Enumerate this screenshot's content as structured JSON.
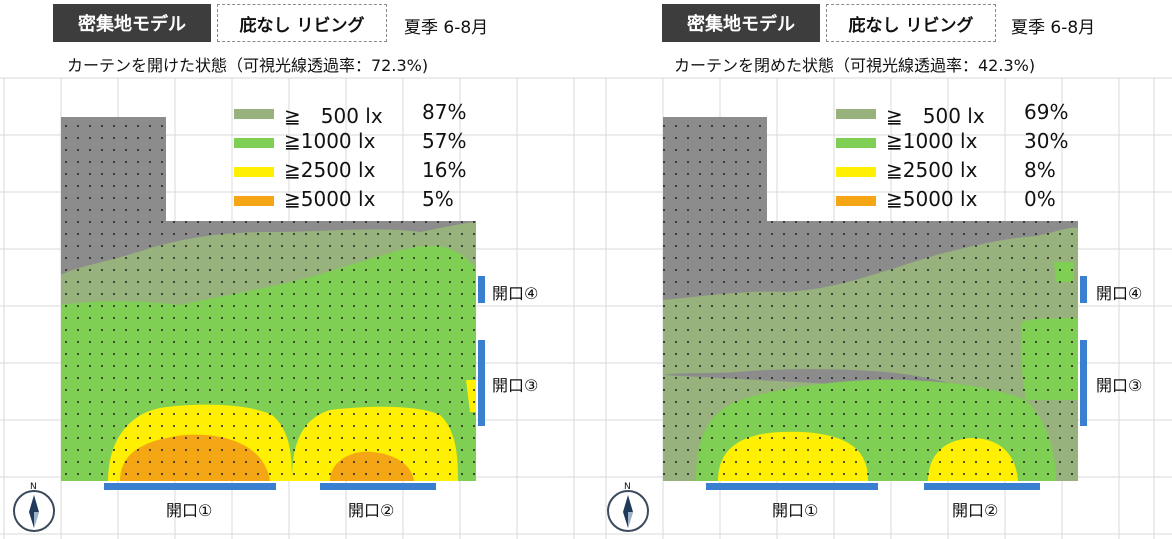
{
  "colors": {
    "gray": "#8c8c8c",
    "olive": "#97b27c",
    "green": "#80cf55",
    "yellow": "#ffef00",
    "orange": "#f5a614",
    "opening_blue": "#3a7fd0"
  },
  "panels": [
    {
      "model_tag": "密集地モデル",
      "variant_tag": "庇なし リビング",
      "season": "夏季 6-8月",
      "caption": "カーテンを開けた状態（可視光線透過率：72.3%)",
      "legend": [
        {
          "label": "≧　500 lx",
          "pct": "87%",
          "color": "olive"
        },
        {
          "label": "≧1000 lx",
          "pct": "57%",
          "color": "green"
        },
        {
          "label": "≧2500 lx",
          "pct": "16%",
          "color": "yellow"
        },
        {
          "label": "≧5000 lx",
          "pct": "5%",
          "color": "orange"
        }
      ],
      "openings": [
        "開口①",
        "開口②",
        "開口③",
        "開口④"
      ],
      "compass": "N"
    },
    {
      "model_tag": "密集地モデル",
      "variant_tag": "庇なし リビング",
      "season": "夏季 6-8月",
      "caption": "カーテンを閉めた状態（可視光線透過率：42.3%)",
      "legend": [
        {
          "label": "≧　500 lx",
          "pct": "69%",
          "color": "olive"
        },
        {
          "label": "≧1000 lx",
          "pct": "30%",
          "color": "green"
        },
        {
          "label": "≧2500 lx",
          "pct": "8%",
          "color": "yellow"
        },
        {
          "label": "≧5000 lx",
          "pct": "0%",
          "color": "orange"
        }
      ],
      "openings": [
        "開口①",
        "開口②",
        "開口③",
        "開口④"
      ],
      "compass": "N"
    }
  ]
}
